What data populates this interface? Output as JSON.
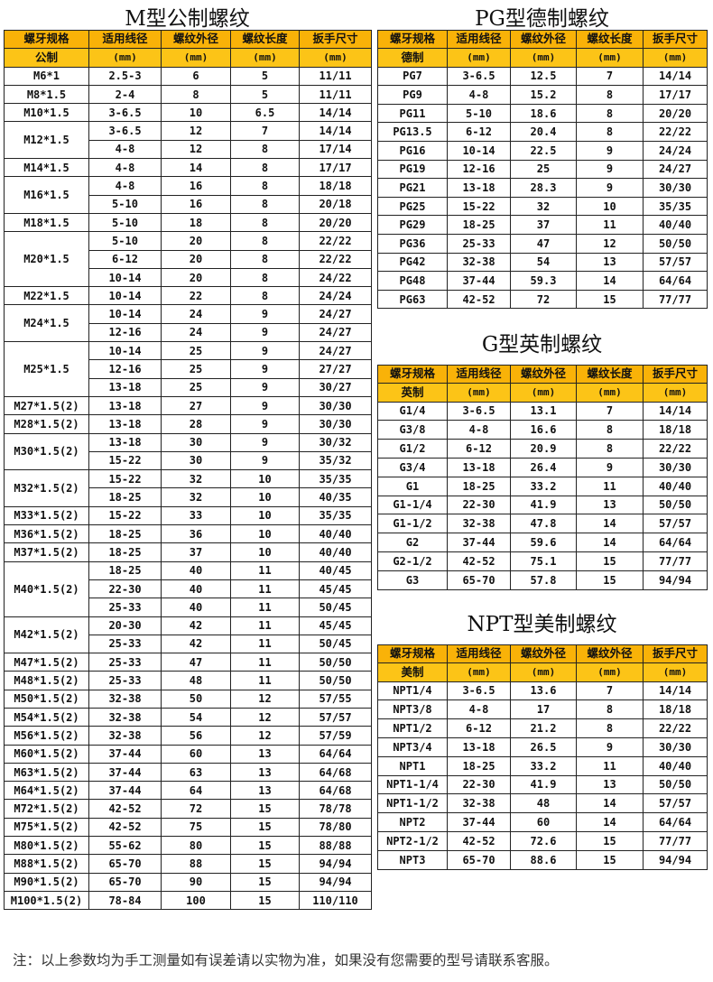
{
  "colors": {
    "header": "#F9B208",
    "subheader": "#FCC417",
    "border": "#222222"
  },
  "m_table": {
    "title": "M型公制螺纹",
    "headers": [
      "螺牙规格",
      "适用线径",
      "螺纹外径",
      "螺纹长度",
      "扳手尺寸"
    ],
    "subheaders": [
      "公制",
      "(mm)",
      "(mm)",
      "(mm)",
      "(mm)"
    ],
    "groups": [
      {
        "spec": "M6*1",
        "rows": [
          [
            "2.5-3",
            "6",
            "5",
            "11/11"
          ]
        ]
      },
      {
        "spec": "M8*1.5",
        "rows": [
          [
            "2-4",
            "8",
            "5",
            "11/11"
          ]
        ]
      },
      {
        "spec": "M10*1.5",
        "rows": [
          [
            "3-6.5",
            "10",
            "6.5",
            "14/14"
          ]
        ]
      },
      {
        "spec": "M12*1.5",
        "rows": [
          [
            "3-6.5",
            "12",
            "7",
            "14/14"
          ],
          [
            "4-8",
            "12",
            "8",
            "17/14"
          ]
        ]
      },
      {
        "spec": "M14*1.5",
        "rows": [
          [
            "4-8",
            "14",
            "8",
            "17/17"
          ]
        ]
      },
      {
        "spec": "M16*1.5",
        "rows": [
          [
            "4-8",
            "16",
            "8",
            "18/18"
          ],
          [
            "5-10",
            "16",
            "8",
            "20/18"
          ]
        ]
      },
      {
        "spec": "M18*1.5",
        "rows": [
          [
            "5-10",
            "18",
            "8",
            "20/20"
          ]
        ]
      },
      {
        "spec": "M20*1.5",
        "rows": [
          [
            "5-10",
            "20",
            "8",
            "22/22"
          ],
          [
            "6-12",
            "20",
            "8",
            "22/22"
          ],
          [
            "10-14",
            "20",
            "8",
            "24/22"
          ]
        ]
      },
      {
        "spec": "M22*1.5",
        "rows": [
          [
            "10-14",
            "22",
            "8",
            "24/24"
          ]
        ]
      },
      {
        "spec": "M24*1.5",
        "rows": [
          [
            "10-14",
            "24",
            "9",
            "24/27"
          ],
          [
            "12-16",
            "24",
            "9",
            "24/27"
          ]
        ]
      },
      {
        "spec": "M25*1.5",
        "rows": [
          [
            "10-14",
            "25",
            "9",
            "24/27"
          ],
          [
            "12-16",
            "25",
            "9",
            "27/27"
          ],
          [
            "13-18",
            "25",
            "9",
            "30/27"
          ]
        ]
      },
      {
        "spec": "M27*1.5(2)",
        "rows": [
          [
            "13-18",
            "27",
            "9",
            "30/30"
          ]
        ]
      },
      {
        "spec": "M28*1.5(2)",
        "rows": [
          [
            "13-18",
            "28",
            "9",
            "30/30"
          ]
        ]
      },
      {
        "spec": "M30*1.5(2)",
        "rows": [
          [
            "13-18",
            "30",
            "9",
            "30/32"
          ],
          [
            "15-22",
            "30",
            "9",
            "35/32"
          ]
        ]
      },
      {
        "spec": "M32*1.5(2)",
        "rows": [
          [
            "15-22",
            "32",
            "10",
            "35/35"
          ],
          [
            "18-25",
            "32",
            "10",
            "40/35"
          ]
        ]
      },
      {
        "spec": "M33*1.5(2)",
        "rows": [
          [
            "15-22",
            "33",
            "10",
            "35/35"
          ]
        ]
      },
      {
        "spec": "M36*1.5(2)",
        "rows": [
          [
            "18-25",
            "36",
            "10",
            "40/40"
          ]
        ]
      },
      {
        "spec": "M37*1.5(2)",
        "rows": [
          [
            "18-25",
            "37",
            "10",
            "40/40"
          ]
        ]
      },
      {
        "spec": "M40*1.5(2)",
        "rows": [
          [
            "18-25",
            "40",
            "11",
            "40/45"
          ],
          [
            "22-30",
            "40",
            "11",
            "45/45"
          ],
          [
            "25-33",
            "40",
            "11",
            "50/45"
          ]
        ]
      },
      {
        "spec": "M42*1.5(2)",
        "rows": [
          [
            "20-30",
            "42",
            "11",
            "45/45"
          ],
          [
            "25-33",
            "42",
            "11",
            "50/45"
          ]
        ]
      },
      {
        "spec": "M47*1.5(2)",
        "rows": [
          [
            "25-33",
            "47",
            "11",
            "50/50"
          ]
        ]
      },
      {
        "spec": "M48*1.5(2)",
        "rows": [
          [
            "25-33",
            "48",
            "11",
            "50/50"
          ]
        ]
      },
      {
        "spec": "M50*1.5(2)",
        "rows": [
          [
            "32-38",
            "50",
            "12",
            "57/55"
          ]
        ]
      },
      {
        "spec": "M54*1.5(2)",
        "rows": [
          [
            "32-38",
            "54",
            "12",
            "57/57"
          ]
        ]
      },
      {
        "spec": "M56*1.5(2)",
        "rows": [
          [
            "32-38",
            "56",
            "12",
            "57/59"
          ]
        ]
      },
      {
        "spec": "M60*1.5(2)",
        "rows": [
          [
            "37-44",
            "60",
            "13",
            "64/64"
          ]
        ]
      },
      {
        "spec": "M63*1.5(2)",
        "rows": [
          [
            "37-44",
            "63",
            "13",
            "64/68"
          ]
        ]
      },
      {
        "spec": "M64*1.5(2)",
        "rows": [
          [
            "37-44",
            "64",
            "13",
            "64/68"
          ]
        ]
      },
      {
        "spec": "M72*1.5(2)",
        "rows": [
          [
            "42-52",
            "72",
            "15",
            "78/78"
          ]
        ]
      },
      {
        "spec": "M75*1.5(2)",
        "rows": [
          [
            "42-52",
            "75",
            "15",
            "78/80"
          ]
        ]
      },
      {
        "spec": "M80*1.5(2)",
        "rows": [
          [
            "55-62",
            "80",
            "15",
            "88/88"
          ]
        ]
      },
      {
        "spec": "M88*1.5(2)",
        "rows": [
          [
            "65-70",
            "88",
            "15",
            "94/94"
          ]
        ]
      },
      {
        "spec": "M90*1.5(2)",
        "rows": [
          [
            "65-70",
            "90",
            "15",
            "94/94"
          ]
        ]
      },
      {
        "spec": "M100*1.5(2)",
        "rows": [
          [
            "78-84",
            "100",
            "15",
            "110/110"
          ]
        ]
      }
    ]
  },
  "pg_table": {
    "title": "PG型德制螺纹",
    "headers": [
      "螺牙规格",
      "适用线径",
      "螺纹外径",
      "螺纹长度",
      "扳手尺寸"
    ],
    "subheaders": [
      "德制",
      "(mm)",
      "(mm)",
      "(mm)",
      "(mm)"
    ],
    "rows": [
      [
        "PG7",
        "3-6.5",
        "12.5",
        "7",
        "14/14"
      ],
      [
        "PG9",
        "4-8",
        "15.2",
        "8",
        "17/17"
      ],
      [
        "PG11",
        "5-10",
        "18.6",
        "8",
        "20/20"
      ],
      [
        "PG13.5",
        "6-12",
        "20.4",
        "8",
        "22/22"
      ],
      [
        "PG16",
        "10-14",
        "22.5",
        "9",
        "24/24"
      ],
      [
        "PG19",
        "12-16",
        "25",
        "9",
        "24/27"
      ],
      [
        "PG21",
        "13-18",
        "28.3",
        "9",
        "30/30"
      ],
      [
        "PG25",
        "15-22",
        "32",
        "10",
        "35/35"
      ],
      [
        "PG29",
        "18-25",
        "37",
        "11",
        "40/40"
      ],
      [
        "PG36",
        "25-33",
        "47",
        "12",
        "50/50"
      ],
      [
        "PG42",
        "32-38",
        "54",
        "13",
        "57/57"
      ],
      [
        "PG48",
        "37-44",
        "59.3",
        "14",
        "64/64"
      ],
      [
        "PG63",
        "42-52",
        "72",
        "15",
        "77/77"
      ]
    ]
  },
  "g_table": {
    "title": "G型英制螺纹",
    "headers": [
      "螺牙规格",
      "适用线径",
      "螺纹外径",
      "螺纹长度",
      "扳手尺寸"
    ],
    "subheaders": [
      "英制",
      "(mm)",
      "(mm)",
      "(mm)",
      "(mm)"
    ],
    "rows": [
      [
        "G1/4",
        "3-6.5",
        "13.1",
        "7",
        "14/14"
      ],
      [
        "G3/8",
        "4-8",
        "16.6",
        "8",
        "18/18"
      ],
      [
        "G1/2",
        "6-12",
        "20.9",
        "8",
        "22/22"
      ],
      [
        "G3/4",
        "13-18",
        "26.4",
        "9",
        "30/30"
      ],
      [
        "G1",
        "18-25",
        "33.2",
        "11",
        "40/40"
      ],
      [
        "G1-1/4",
        "22-30",
        "41.9",
        "13",
        "50/50"
      ],
      [
        "G1-1/2",
        "32-38",
        "47.8",
        "14",
        "57/57"
      ],
      [
        "G2",
        "37-44",
        "59.6",
        "14",
        "64/64"
      ],
      [
        "G2-1/2",
        "42-52",
        "75.1",
        "15",
        "77/77"
      ],
      [
        "G3",
        "65-70",
        "57.8",
        "15",
        "94/94"
      ]
    ]
  },
  "npt_table": {
    "title": "NPT型美制螺纹",
    "headers": [
      "螺牙规格",
      "适用线径",
      "螺纹外径",
      "螺纹外径",
      "扳手尺寸"
    ],
    "subheaders": [
      "美制",
      "(mm)",
      "(mm)",
      "(mm)",
      "(mm)"
    ],
    "rows": [
      [
        "NPT1/4",
        "3-6.5",
        "13.6",
        "7",
        "14/14"
      ],
      [
        "NPT3/8",
        "4-8",
        "17",
        "8",
        "18/18"
      ],
      [
        "NPT1/2",
        "6-12",
        "21.2",
        "8",
        "22/22"
      ],
      [
        "NPT3/4",
        "13-18",
        "26.5",
        "9",
        "30/30"
      ],
      [
        "NPT1",
        "18-25",
        "33.2",
        "11",
        "40/40"
      ],
      [
        "NPT1-1/4",
        "22-30",
        "41.9",
        "13",
        "50/50"
      ],
      [
        "NPT1-1/2",
        "32-38",
        "48",
        "14",
        "57/57"
      ],
      [
        "NPT2",
        "37-44",
        "60",
        "14",
        "64/64"
      ],
      [
        "NPT2-1/2",
        "42-52",
        "72.6",
        "15",
        "77/77"
      ],
      [
        "NPT3",
        "65-70",
        "88.6",
        "15",
        "94/94"
      ]
    ]
  },
  "note": "注：以上参数均为手工测量如有误差请以实物为准，如果没有您需要的型号请联系客服。"
}
